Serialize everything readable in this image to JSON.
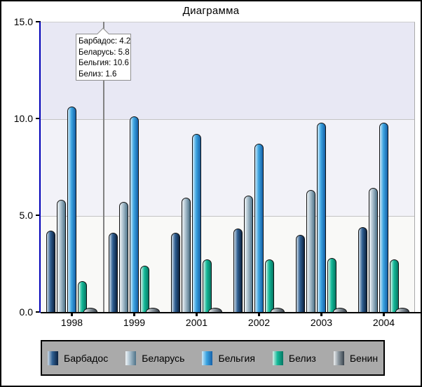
{
  "window": {
    "title": "Диаграмма"
  },
  "chart_data": {
    "type": "bar",
    "title": "Диаграмма",
    "categories": [
      "1998",
      "1999",
      "2001",
      "2002",
      "2003",
      "2004"
    ],
    "series": [
      {
        "name": "Барбадос",
        "values": [
          4.2,
          4.1,
          4.1,
          4.3,
          4.0,
          4.4
        ],
        "colors": {
          "light": "#ccdae6",
          "mid": "#2f5f92",
          "dark": "#0b2240"
        }
      },
      {
        "name": "Беларусь",
        "values": [
          5.8,
          5.7,
          5.9,
          6.0,
          6.3,
          6.4
        ],
        "colors": {
          "light": "#eff4f7",
          "mid": "#a5bcca",
          "dark": "#4f7389"
        }
      },
      {
        "name": "Бельгия",
        "values": [
          10.6,
          10.1,
          9.2,
          8.7,
          9.8,
          9.8
        ],
        "colors": {
          "light": "#cdeafa",
          "mid": "#3ba4e0",
          "dark": "#1660a8"
        }
      },
      {
        "name": "Белиз",
        "values": [
          1.6,
          2.4,
          2.7,
          2.7,
          2.8,
          2.7
        ],
        "colors": {
          "light": "#d6f1e9",
          "mid": "#14b998",
          "dark": "#067663"
        }
      },
      {
        "name": "Бенин",
        "values": [
          0.2,
          0.2,
          0.2,
          0.2,
          0.2,
          0.2
        ],
        "colors": {
          "light": "#eceef0",
          "mid": "#8d98a0",
          "dark": "#39434c"
        }
      }
    ],
    "ylim": [
      0,
      15
    ],
    "yticks": [
      {
        "label": "15.0",
        "value": 15
      },
      {
        "label": "10.0",
        "value": 10
      },
      {
        "label": "5.0",
        "value": 5
      },
      {
        "label": "0.0",
        "value": 0
      }
    ],
    "grid": "horizontal",
    "legend_position": "bottom",
    "plot_band_colors": [
      "#e8e8f4",
      "#f2f2f8",
      "#f9f9f7"
    ],
    "axis_colors": {
      "y": "#0000b8",
      "x": "#000000"
    },
    "tooltip": {
      "lines": [
        "Барбадос: 4.2",
        "Беларусь: 5.8",
        "Бельгия: 10.6",
        "Белиз: 1.6"
      ]
    }
  }
}
